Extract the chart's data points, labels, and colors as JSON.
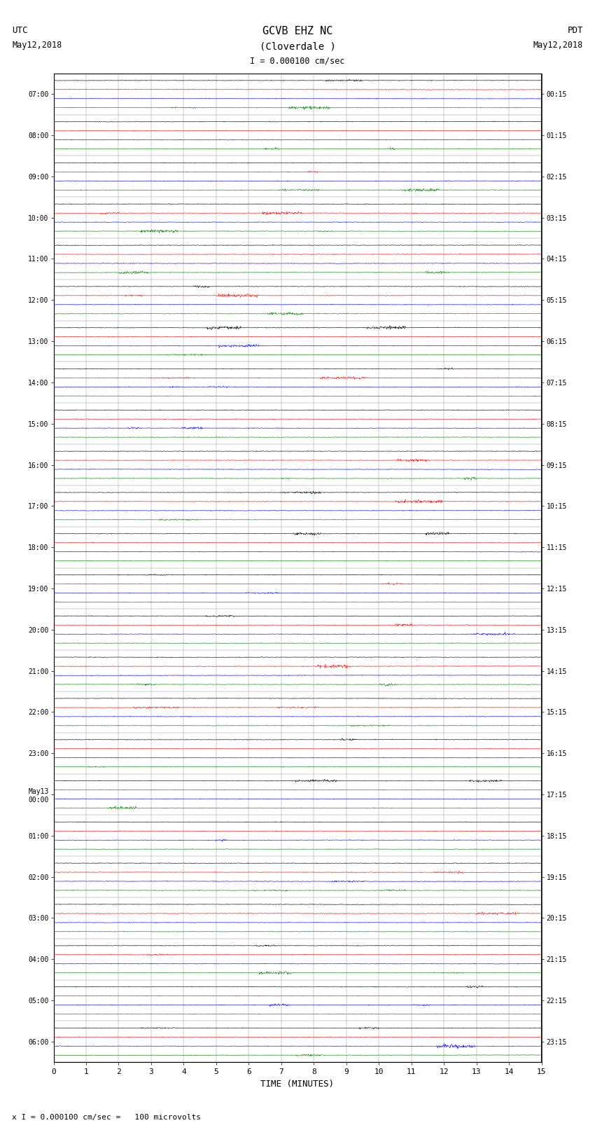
{
  "title_line1": "GCVB EHZ NC",
  "title_line2": "(Cloverdale )",
  "scale_label": "I = 0.000100 cm/sec",
  "left_label_top": "UTC",
  "left_label_date": "May12,2018",
  "right_label_top": "PDT",
  "right_label_date": "May12,2018",
  "bottom_label": "TIME (MINUTES)",
  "footer_text": "x I = 0.000100 cm/sec =   100 microvolts",
  "utc_times": [
    "07:00",
    "08:00",
    "09:00",
    "10:00",
    "11:00",
    "12:00",
    "13:00",
    "14:00",
    "15:00",
    "16:00",
    "17:00",
    "18:00",
    "19:00",
    "20:00",
    "21:00",
    "22:00",
    "23:00",
    "May13\n00:00",
    "01:00",
    "02:00",
    "03:00",
    "04:00",
    "05:00",
    "06:00"
  ],
  "pdt_times": [
    "00:15",
    "01:15",
    "02:15",
    "03:15",
    "04:15",
    "05:15",
    "06:15",
    "07:15",
    "08:15",
    "09:15",
    "10:15",
    "11:15",
    "12:15",
    "13:15",
    "14:15",
    "15:15",
    "16:15",
    "17:15",
    "18:15",
    "19:15",
    "20:15",
    "21:15",
    "22:15",
    "23:15"
  ],
  "n_rows": 24,
  "n_minutes": 15,
  "samples_per_minute": 100,
  "row_colors": [
    "black",
    "red",
    "blue",
    "green"
  ],
  "amplitude_scale": 0.12,
  "background_color": "white",
  "grid_color": "#888888",
  "grid_linewidth": 0.3,
  "trace_linewidth": 0.4,
  "figsize": [
    8.5,
    16.13
  ],
  "dpi": 100
}
